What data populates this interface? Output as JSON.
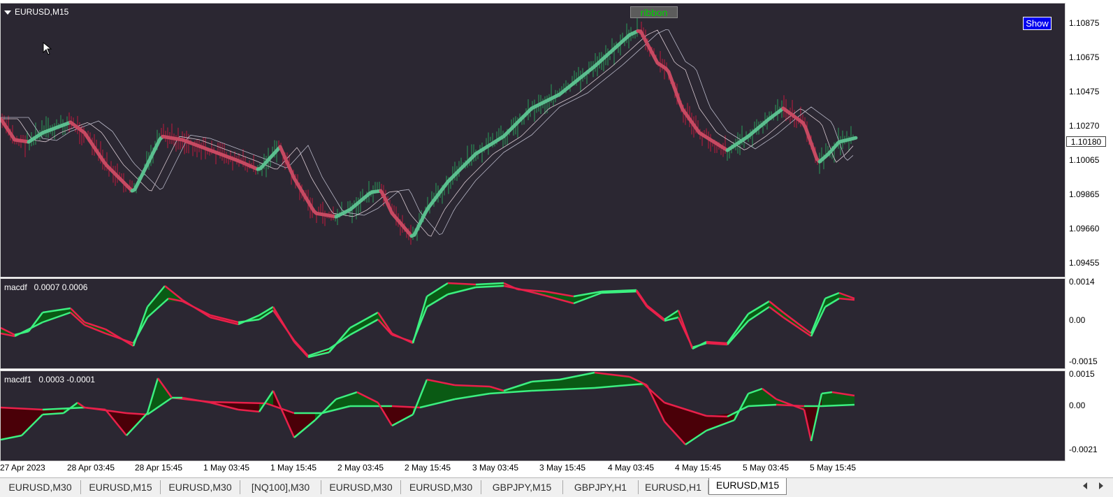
{
  "main_chart": {
    "symbol_label": "EURUSD,M15",
    "ribbon_button": "ribbon",
    "show_button": "Show",
    "current_price": "1.10180",
    "price_ticks": [
      "1.10875",
      "1.10675",
      "1.10475",
      "1.10270",
      "1.10065",
      "1.09865",
      "1.09660",
      "1.09455"
    ],
    "colors": {
      "up_candle": "#2a9d5a",
      "down_candle": "#c2183f",
      "ma_green": "#5bbf8f",
      "ma_red": "#c74a62"
    }
  },
  "macdf": {
    "label": "macdf   0.0007 0.0006",
    "ticks": [
      "0.0014",
      "0.00",
      "-0.0015"
    ]
  },
  "macdf1": {
    "label": "macdf1   0.0003 -0.0001",
    "ticks": [
      "0.0015",
      "0.00",
      "-0.0021"
    ]
  },
  "time_axis": [
    "27 Apr 2023",
    "28 Apr 03:45",
    "28 Apr 15:45",
    "1 May 03:45",
    "1 May 15:45",
    "2 May 03:45",
    "2 May 15:45",
    "3 May 03:45",
    "3 May 15:45",
    "4 May 03:45",
    "4 May 15:45",
    "5 May 03:45",
    "5 May 15:45"
  ],
  "tabs": [
    "EURUSD,M30",
    "EURUSD,M15",
    "EURUSD,M30",
    "[NQ100],M30",
    "EURUSD,M30",
    "EURUSD,M30",
    "GBPJPY,M15",
    "GBPJPY,H1",
    "EURUSD,H1",
    "EURUSD,M15"
  ],
  "active_tab": 9,
  "icons": {
    "tab_scroll_left": "triangle-left-icon",
    "tab_scroll_right": "triangle-right-icon",
    "chart_menu": "triangle-down-icon"
  }
}
